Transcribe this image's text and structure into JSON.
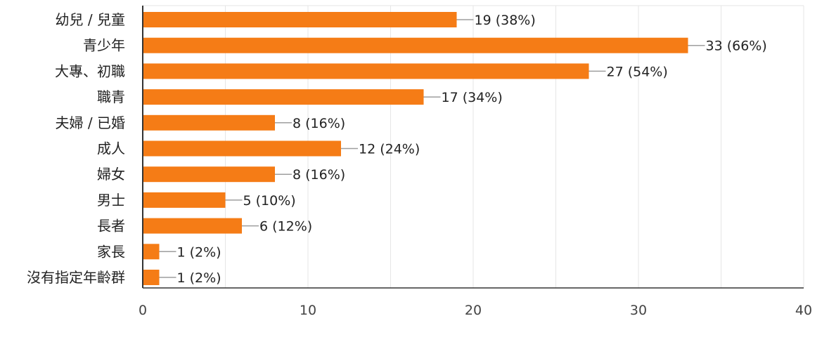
{
  "chart_data": {
    "type": "bar",
    "orientation": "horizontal",
    "categories": [
      "幼兒 / 兒童",
      "青少年",
      "大專、初職",
      "職青",
      "夫婦 / 已婚",
      "成人",
      "婦女",
      "男士",
      "長者",
      "家長",
      "沒有指定年齡群"
    ],
    "values": [
      19,
      33,
      27,
      17,
      8,
      12,
      8,
      5,
      6,
      1,
      1
    ],
    "data_labels": [
      "19 (38%)",
      "33 (66%)",
      "27 (54%)",
      "17 (34%)",
      "8 (16%)",
      "12 (24%)",
      "8 (16%)",
      "5 (10%)",
      "6 (12%)",
      "1 (2%)",
      "1 (2%)"
    ],
    "x_ticks": [
      "0",
      "10",
      "20",
      "30",
      "40"
    ],
    "xlim": [
      0,
      40
    ],
    "grid": true,
    "bar_color": "#f57c16",
    "grid_color": "#e6e6e6",
    "axis_color": "#333333",
    "leader_color": "#9e9e9e"
  }
}
